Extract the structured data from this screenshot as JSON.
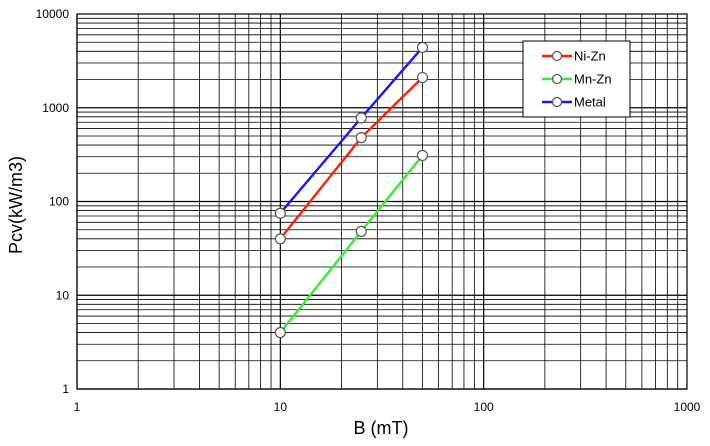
{
  "chart_data": {
    "type": "line",
    "xscale": "log",
    "yscale": "log",
    "xlim": [
      1,
      1000
    ],
    "ylim": [
      1,
      10000
    ],
    "xlabel": "B (mT)",
    "ylabel": "Pcv(kW/m3)",
    "x_ticks": [
      {
        "value": 1,
        "label": "1"
      },
      {
        "value": 10,
        "label": "10"
      },
      {
        "value": 100,
        "label": "100"
      },
      {
        "value": 1000,
        "label": "1000"
      }
    ],
    "y_ticks": [
      {
        "value": 1,
        "label": "1"
      },
      {
        "value": 10,
        "label": "10"
      },
      {
        "value": 100,
        "label": "100"
      },
      {
        "value": 1000,
        "label": "1000"
      },
      {
        "value": 10000,
        "label": "10000"
      }
    ],
    "grid": true,
    "legend_position": "top-right",
    "series": [
      {
        "name": "Ni-Zn",
        "color": "#ff2000",
        "points": [
          [
            10,
            40
          ],
          [
            25,
            480
          ],
          [
            50,
            2100
          ]
        ]
      },
      {
        "name": "Mn-Zn",
        "color": "#33ee33",
        "points": [
          [
            10,
            4
          ],
          [
            25,
            48
          ],
          [
            50,
            310
          ]
        ]
      },
      {
        "name": "Metal",
        "color": "#1a1aee",
        "points": [
          [
            10,
            75
          ],
          [
            25,
            780
          ],
          [
            50,
            4400
          ]
        ]
      }
    ]
  }
}
